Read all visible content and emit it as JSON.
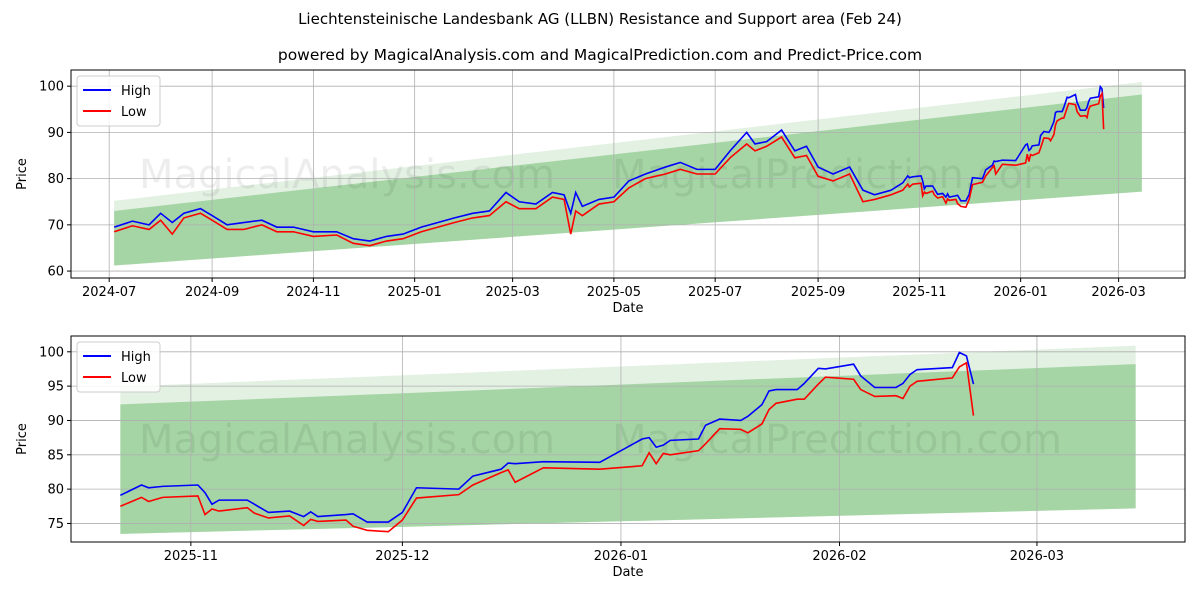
{
  "title": "Liechtensteinische Landesbank AG (LLBN) Resistance and Support area (Feb 24)",
  "subtitle": "powered by MagicalAnalysis.com and MagicalPrediction.com and Predict-Price.com",
  "watermarks": [
    "MagicalAnalysis.com",
    "MagicalPrediction.com"
  ],
  "colors": {
    "high": "#0000ff",
    "low": "#ff0000",
    "band_dark": "#a5d5a5",
    "band_light": "#e3f1e3"
  },
  "chart_data": [
    {
      "type": "line",
      "xlabel": "Date",
      "ylabel": "Price",
      "xlim": [
        "2024-06-08",
        "2026-04-10"
      ],
      "ylim": [
        58.5,
        103.5
      ],
      "yticks": [
        60,
        70,
        80,
        90,
        100
      ],
      "xticks": [
        "2024-07",
        "2024-09",
        "2024-11",
        "2025-01",
        "2025-03",
        "2025-05",
        "2025-07",
        "2025-09",
        "2025-11",
        "2026-01",
        "2026-03"
      ],
      "legend": {
        "position": "top-left",
        "entries": [
          "High",
          "Low"
        ]
      },
      "grid": true,
      "start": "2024-07-04"
    },
    {
      "type": "line",
      "xlabel": "Date",
      "ylabel": "Price",
      "xlim": [
        "2025-10-15",
        "2026-03-22"
      ],
      "ylim": [
        72.3,
        102.3
      ],
      "yticks": [
        75,
        80,
        85,
        90,
        95,
        100
      ],
      "xticks": [
        "2025-11",
        "2025-12",
        "2026-01",
        "2026-02",
        "2026-03"
      ],
      "legend": {
        "position": "top-left",
        "entries": [
          "High",
          "Low"
        ]
      },
      "grid": true,
      "start": "2025-10-22"
    }
  ],
  "bands": {
    "start": "2024-07-04",
    "end": "2026-03-15",
    "light_upper": [
      75.2,
      100.9
    ],
    "dark_upper": [
      73.0,
      98.2
    ],
    "lower": [
      61.2,
      77.2
    ]
  },
  "series": [
    [
      "2024-07-04",
      69.5,
      68.5
    ],
    [
      "2024-07-15",
      70.8,
      69.8
    ],
    [
      "2024-07-25",
      70,
      69
    ],
    [
      "2024-08-01",
      72.5,
      71
    ],
    [
      "2024-08-08",
      70.5,
      68
    ],
    [
      "2024-08-15",
      72.5,
      71.5
    ],
    [
      "2024-08-25",
      73.5,
      72.5
    ],
    [
      "2024-09-01",
      72,
      71
    ],
    [
      "2024-09-10",
      70,
      69
    ],
    [
      "2024-09-20",
      70.5,
      69
    ],
    [
      "2024-10-01",
      71,
      70
    ],
    [
      "2024-10-10",
      69.5,
      68.5
    ],
    [
      "2024-10-20",
      69.5,
      68.5
    ],
    [
      "2024-11-01",
      68.5,
      67.5
    ],
    [
      "2024-11-15",
      68.5,
      67.8
    ],
    [
      "2024-11-25",
      67,
      66
    ],
    [
      "2024-12-05",
      66.5,
      65.5
    ],
    [
      "2024-12-15",
      67.5,
      66.5
    ],
    [
      "2024-12-25",
      68,
      67
    ],
    [
      "2025-01-05",
      69.5,
      68.5
    ],
    [
      "2025-01-15",
      70.5,
      69.5
    ],
    [
      "2025-01-25",
      71.5,
      70.5
    ],
    [
      "2025-02-05",
      72.5,
      71.5
    ],
    [
      "2025-02-15",
      73,
      72
    ],
    [
      "2025-02-25",
      77,
      75
    ],
    [
      "2025-03-05",
      75,
      73.5
    ],
    [
      "2025-03-15",
      74.5,
      73.5
    ],
    [
      "2025-03-25",
      77,
      76
    ],
    [
      "2025-04-01",
      76.5,
      75.5
    ],
    [
      "2025-04-05",
      72.5,
      68
    ],
    [
      "2025-04-08",
      77,
      73
    ],
    [
      "2025-04-12",
      74,
      72
    ],
    [
      "2025-04-22",
      75.5,
      74.5
    ],
    [
      "2025-05-01",
      76,
      75
    ],
    [
      "2025-05-10",
      79.5,
      78
    ],
    [
      "2025-05-20",
      81,
      80
    ],
    [
      "2025-06-01",
      82.5,
      81
    ],
    [
      "2025-06-10",
      83.5,
      82
    ],
    [
      "2025-06-20",
      82,
      81
    ],
    [
      "2025-07-01",
      82,
      81
    ],
    [
      "2025-07-10",
      86,
      84.5
    ],
    [
      "2025-07-20",
      90,
      87.5
    ],
    [
      "2025-07-25",
      87.5,
      86
    ],
    [
      "2025-08-01",
      88,
      87
    ],
    [
      "2025-08-10",
      90.5,
      89
    ],
    [
      "2025-08-18",
      86,
      84.5
    ],
    [
      "2025-08-25",
      87,
      85
    ],
    [
      "2025-09-01",
      82.5,
      80.5
    ],
    [
      "2025-09-10",
      81,
      79.5
    ],
    [
      "2025-09-20",
      82.5,
      81
    ],
    [
      "2025-09-28",
      77.5,
      75
    ],
    [
      "2025-10-05",
      76.5,
      75.5
    ],
    [
      "2025-10-15",
      77.5,
      76.5
    ],
    [
      "2025-10-22",
      79.1,
      77.5
    ],
    [
      "2025-10-25",
      80.6,
      78.8
    ],
    [
      "2025-10-26",
      80.2,
      78.2
    ],
    [
      "2025-10-28",
      80.4,
      78.8
    ],
    [
      "2025-11-02",
      80.6,
      79
    ],
    [
      "2025-11-03",
      79.5,
      76.3
    ],
    [
      "2025-11-04",
      77.8,
      77.1
    ],
    [
      "2025-11-05",
      78.4,
      76.8
    ],
    [
      "2025-11-09",
      78.4,
      77.3
    ],
    [
      "2025-11-10",
      77.8,
      76.5
    ],
    [
      "2025-11-12",
      76.6,
      75.8
    ],
    [
      "2025-11-15",
      76.8,
      76.1
    ],
    [
      "2025-11-17",
      76.0,
      74.7
    ],
    [
      "2025-11-18",
      76.7,
      75.6
    ],
    [
      "2025-11-19",
      76.0,
      75.3
    ],
    [
      "2025-11-23",
      76.3,
      75.5
    ],
    [
      "2025-11-24",
      76.4,
      74.6
    ],
    [
      "2025-11-26",
      75.2,
      74.0
    ],
    [
      "2025-11-29",
      75.2,
      73.8
    ],
    [
      "2025-12-01",
      76.6,
      75.5
    ],
    [
      "2025-12-03",
      80.2,
      78.7
    ],
    [
      "2025-12-09",
      80.0,
      79.2
    ],
    [
      "2025-12-11",
      81.9,
      80.6
    ],
    [
      "2025-12-15",
      82.9,
      82.4
    ],
    [
      "2025-12-16",
      83.8,
      82.8
    ],
    [
      "2025-12-17",
      83.7,
      81.0
    ],
    [
      "2025-12-21",
      84.0,
      83.1
    ],
    [
      "2025-12-29",
      83.9,
      82.9
    ],
    [
      "2026-01-04",
      87.3,
      83.4
    ],
    [
      "2026-01-05",
      87.5,
      85.3
    ],
    [
      "2026-01-06",
      86.1,
      83.7
    ],
    [
      "2026-01-07",
      86.4,
      85.2
    ],
    [
      "2026-01-08",
      87.1,
      85.0
    ],
    [
      "2026-01-12",
      87.3,
      85.6
    ],
    [
      "2026-01-13",
      89.3,
      86.6
    ],
    [
      "2026-01-15",
      90.2,
      88.8
    ],
    [
      "2026-01-18",
      90.0,
      88.7
    ],
    [
      "2026-01-19",
      90.6,
      88.2
    ],
    [
      "2026-01-21",
      92.3,
      89.5
    ],
    [
      "2026-01-22",
      94.3,
      91.6
    ],
    [
      "2026-01-23",
      94.5,
      92.5
    ],
    [
      "2026-01-26",
      94.5,
      93.1
    ],
    [
      "2026-01-27",
      95.4,
      93.1
    ],
    [
      "2026-01-29",
      97.6,
      95.3
    ],
    [
      "2026-01-30",
      97.5,
      96.3
    ],
    [
      "2026-02-03",
      98.2,
      96.0
    ],
    [
      "2026-02-04",
      96.5,
      94.5
    ],
    [
      "2026-02-06",
      94.8,
      93.5
    ],
    [
      "2026-02-09",
      94.8,
      93.6
    ],
    [
      "2026-02-10",
      95.4,
      93.2
    ],
    [
      "2026-02-11",
      96.7,
      95.0
    ],
    [
      "2026-02-12",
      97.4,
      95.7
    ],
    [
      "2026-02-17",
      97.7,
      96.2
    ],
    [
      "2026-02-18",
      99.9,
      97.8
    ],
    [
      "2026-02-19",
      99.4,
      98.4
    ],
    [
      "2026-02-20",
      95.3,
      90.7
    ]
  ]
}
